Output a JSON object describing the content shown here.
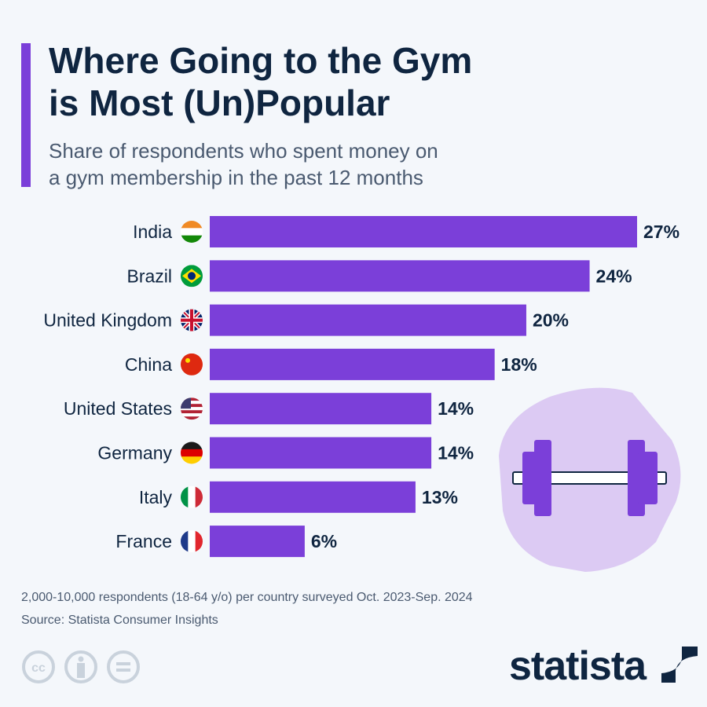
{
  "title_line1": "Where Going to the Gym",
  "title_line2": "is Most (Un)Popular",
  "subtitle_line1": "Share of respondents who spent money on",
  "subtitle_line2": "a gym membership in the past 12 months",
  "footnote": "2,000-10,000 respondents (18-64 y/o) per country surveyed Oct. 2023-Sep. 2024",
  "source": "Source: Statista Consumer Insights",
  "logo": "statista",
  "colors": {
    "bar": "#7b3fd9",
    "text": "#0f2540",
    "blob": "#dccaf3"
  },
  "icons": [
    "cc-icon",
    "attribution-icon",
    "no-derivatives-icon",
    "dumbbell-icon"
  ],
  "chart_data": {
    "type": "bar",
    "orientation": "horizontal",
    "categories": [
      "India",
      "Brazil",
      "United Kingdom",
      "China",
      "United States",
      "Germany",
      "Italy",
      "France"
    ],
    "values": [
      27,
      24,
      20,
      18,
      14,
      14,
      13,
      6
    ],
    "labels": [
      "27%",
      "24%",
      "20%",
      "18%",
      "14%",
      "14%",
      "13%",
      "6%"
    ],
    "unit": "%",
    "xlim": [
      0,
      27
    ],
    "grid": false
  }
}
